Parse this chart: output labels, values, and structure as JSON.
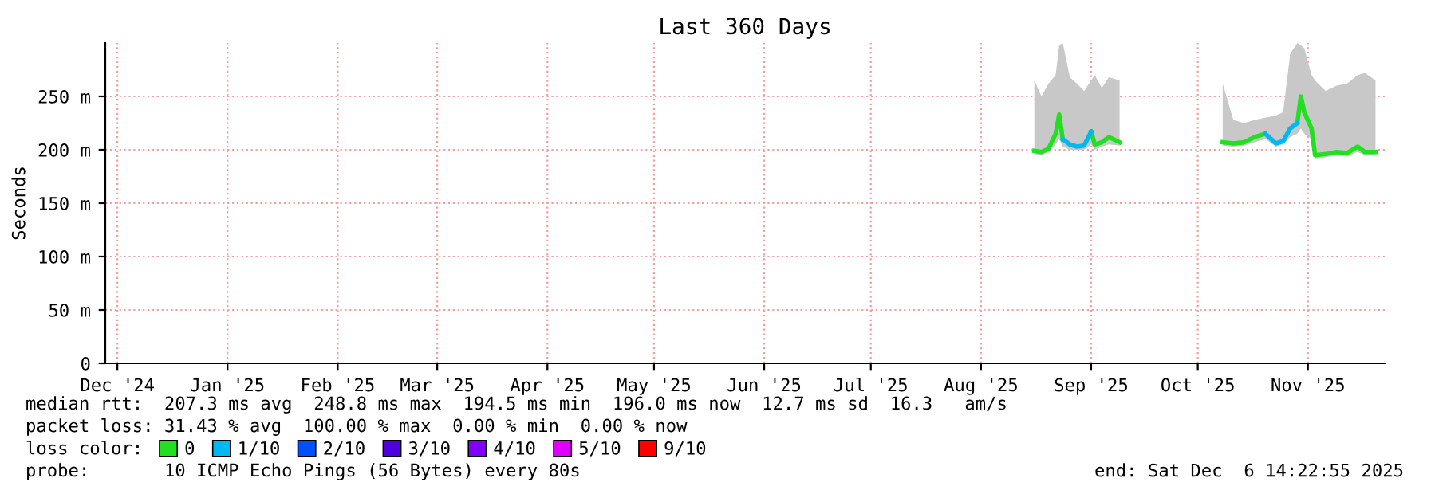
{
  "chart_data": {
    "type": "line",
    "title": "Last 360 Days",
    "ylabel": "Seconds",
    "x": [
      "2025-08-30",
      "2025-09-01",
      "2025-09-03",
      "2025-09-05",
      "2025-09-06",
      "2025-09-07",
      "2025-09-09",
      "2025-09-11",
      "2025-09-13",
      "2025-09-15",
      "2025-09-16",
      "2025-09-18",
      "2025-09-20",
      "2025-09-23",
      "2025-09-24",
      "2025-10-22",
      "2025-10-25",
      "2025-10-28",
      "2025-10-31",
      "2025-11-03",
      "2025-11-06",
      "2025-11-08",
      "2025-11-10",
      "2025-11-12",
      "2025-11-13",
      "2025-11-14",
      "2025-11-16",
      "2025-11-17",
      "2025-11-20",
      "2025-11-23",
      "2025-11-26",
      "2025-11-29",
      "2025-12-01",
      "2025-12-04"
    ],
    "series": [
      {
        "name": "0",
        "color": "#20e020",
        "values": [
          199,
          198,
          201,
          215,
          233,
          210,
          null,
          null,
          null,
          217,
          205,
          207,
          212,
          207,
          null,
          207,
          206,
          207,
          212,
          215,
          null,
          null,
          null,
          225,
          250,
          235,
          220,
          195,
          196,
          198,
          197,
          203,
          198,
          198
        ],
        "lower": [
          196,
          195,
          198,
          205,
          210,
          203,
          200,
          200,
          200,
          205,
          200,
          203,
          205,
          204,
          null,
          204,
          203,
          204,
          207,
          210,
          203,
          205,
          212,
          215,
          220,
          215,
          210,
          192,
          193,
          195,
          194,
          198,
          195,
          195
        ],
        "upper": [
          265,
          250,
          262,
          270,
          298,
          300,
          268,
          262,
          255,
          265,
          270,
          258,
          268,
          265,
          null,
          262,
          228,
          225,
          228,
          230,
          232,
          235,
          290,
          300,
          298,
          295,
          270,
          265,
          255,
          260,
          262,
          270,
          272,
          265
        ]
      },
      {
        "name": "1/10",
        "color": "#00b8f0",
        "values": [
          null,
          null,
          null,
          null,
          null,
          210,
          205,
          203,
          204,
          217,
          null,
          null,
          null,
          null,
          null,
          null,
          null,
          null,
          null,
          215,
          206,
          208,
          220,
          225,
          null,
          null,
          null,
          null,
          null,
          null,
          null,
          null,
          null,
          null
        ]
      },
      {
        "name": "2/10",
        "color": "#0050ff",
        "values": [
          null,
          null,
          null,
          null,
          null,
          null,
          null,
          null,
          null,
          null,
          null,
          null,
          null,
          null,
          null,
          null,
          null,
          null,
          null,
          null,
          null,
          null,
          null,
          null,
          null,
          null,
          null,
          null,
          null,
          null,
          null,
          null,
          null,
          null
        ]
      },
      {
        "name": "3/10",
        "color": "#5000e0",
        "values": [
          null,
          null,
          null,
          null,
          null,
          null,
          null,
          null,
          null,
          null,
          null,
          null,
          null,
          null,
          null,
          null,
          null,
          null,
          null,
          null,
          null,
          null,
          null,
          null,
          null,
          null,
          null,
          null,
          null,
          null,
          null,
          null,
          null,
          null
        ]
      },
      {
        "name": "4/10",
        "color": "#8000ff",
        "values": [
          null,
          null,
          null,
          null,
          null,
          null,
          null,
          null,
          null,
          null,
          null,
          null,
          null,
          null,
          null,
          null,
          null,
          null,
          null,
          null,
          null,
          null,
          null,
          null,
          null,
          null,
          null,
          null,
          null,
          null,
          null,
          null,
          null,
          null
        ]
      },
      {
        "name": "5/10",
        "color": "#e000ff",
        "values": [
          null,
          null,
          null,
          null,
          null,
          null,
          null,
          null,
          null,
          null,
          null,
          null,
          null,
          null,
          null,
          null,
          null,
          null,
          null,
          null,
          null,
          null,
          null,
          null,
          null,
          null,
          null,
          null,
          null,
          null,
          null,
          null,
          null,
          null
        ]
      },
      {
        "name": "9/10",
        "color": "#ff0000",
        "values": [
          null,
          null,
          null,
          null,
          null,
          null,
          null,
          null,
          null,
          null,
          null,
          null,
          null,
          null,
          null,
          null,
          null,
          null,
          null,
          null,
          null,
          null,
          null,
          null,
          null,
          null,
          null,
          null,
          null,
          null,
          null,
          null,
          null,
          null
        ]
      }
    ],
    "xlim": [
      "2024-12-11T14:22",
      "2025-12-06T14:22"
    ],
    "xticks": [
      {
        "value": "2024-12-15",
        "label": "Dec '24"
      },
      {
        "value": "2025-01-15",
        "label": "Jan '25"
      },
      {
        "value": "2025-02-15",
        "label": "Feb '25"
      },
      {
        "value": "2025-03-15",
        "label": "Mar '25"
      },
      {
        "value": "2025-04-15",
        "label": "Apr '25"
      },
      {
        "value": "2025-05-15",
        "label": "May '25"
      },
      {
        "value": "2025-06-15",
        "label": "Jun '25"
      },
      {
        "value": "2025-07-15",
        "label": "Jul '25"
      },
      {
        "value": "2025-08-15",
        "label": "Aug '25"
      },
      {
        "value": "2025-09-15",
        "label": "Sep '25"
      },
      {
        "value": "2025-10-15",
        "label": "Oct '25"
      },
      {
        "value": "2025-11-15",
        "label": "Nov '25"
      }
    ],
    "ylim": [
      0,
      300
    ],
    "yticks": [
      0,
      {
        "value": 50,
        "label": "50 m"
      },
      {
        "value": 100,
        "label": "100 m"
      },
      {
        "value": 150,
        "label": "150 m"
      },
      {
        "value": 200,
        "label": "200 m"
      },
      {
        "value": 250,
        "label": "250 m"
      }
    ],
    "grid": true,
    "legend": "bottom",
    "legend_title": "loss color:",
    "line_style": "solid",
    "marker": "none",
    "annotations": [
      "median rtt:  207.3 ms avg  248.8 ms max  194.5 ms min  196.0 ms now  12.7 ms sd  16.3   am/s",
      "packet loss: 31.43 % avg  100.00 % max  0.00 % min  0.00 % now",
      "probe:       10 ICMP Echo Pings (56 Bytes) every 80s",
      "end: Sat Dec  6 14:22:55 2025"
    ]
  }
}
